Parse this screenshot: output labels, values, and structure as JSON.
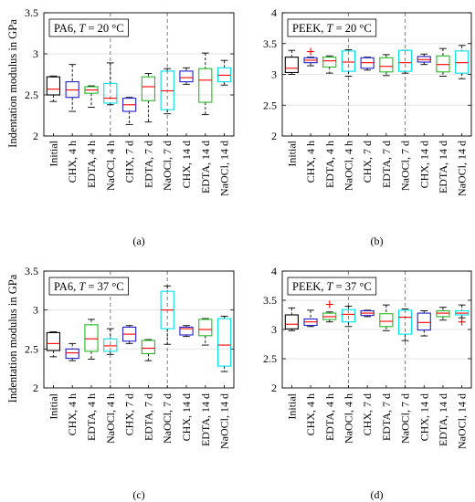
{
  "figure": {
    "ylabel": "Indentation modulus in GPa"
  },
  "colors": {
    "black": "#000000",
    "blue": "#1f1fd0",
    "green": "#22bb22",
    "cyan": "#00e0e8",
    "median": "#ff0000",
    "outlier": "#ff0000",
    "divider": "#808080"
  },
  "chart_data": [
    {
      "type": "box",
      "panel_label": "(a)",
      "material": "PA6",
      "temperature_label": "T",
      "temperature_value": "= 20 °C",
      "ylabel": "Indentation modulus in GPa",
      "ylim": [
        2,
        3.5
      ],
      "yticks": [
        "2",
        "2.5",
        "3",
        "3.5"
      ],
      "categories": [
        "Initial",
        "CHX, 4 h",
        "EDTA, 4 h",
        "NaOCl, 4 h",
        "CHX, 7 d",
        "EDTA, 7 d",
        "NaOCl, 7 d",
        "CHX, 14 d",
        "EDTA, 14 d",
        "NaOCl, 14 d"
      ],
      "colors": [
        "black",
        "blue",
        "green",
        "cyan",
        "blue",
        "green",
        "cyan",
        "blue",
        "green",
        "cyan"
      ],
      "boxes": [
        {
          "whisker_low": 2.42,
          "q1": 2.5,
          "median": 2.57,
          "q3": 2.72,
          "whisker_high": 2.73
        },
        {
          "whisker_low": 2.3,
          "q1": 2.47,
          "median": 2.56,
          "q3": 2.66,
          "whisker_high": 2.87
        },
        {
          "whisker_low": 2.35,
          "q1": 2.52,
          "median": 2.56,
          "q3": 2.6,
          "whisker_high": 2.61
        },
        {
          "whisker_low": 2.38,
          "q1": 2.4,
          "median": 2.46,
          "q3": 2.64,
          "whisker_high": 2.89
        },
        {
          "whisker_low": 2.14,
          "q1": 2.3,
          "median": 2.38,
          "q3": 2.46,
          "whisker_high": 2.47
        },
        {
          "whisker_low": 2.17,
          "q1": 2.43,
          "median": 2.6,
          "q3": 2.72,
          "whisker_high": 2.76
        },
        {
          "whisker_low": 2.27,
          "q1": 2.32,
          "median": 2.55,
          "q3": 2.79,
          "whisker_high": 2.82
        },
        {
          "whisker_low": 2.63,
          "q1": 2.66,
          "median": 2.71,
          "q3": 2.79,
          "whisker_high": 2.83
        },
        {
          "whisker_low": 2.26,
          "q1": 2.41,
          "median": 2.68,
          "q3": 2.82,
          "whisker_high": 3.01
        },
        {
          "whisker_low": 2.62,
          "q1": 2.66,
          "median": 2.74,
          "q3": 2.83,
          "whisker_high": 2.92
        }
      ],
      "outliers": []
    },
    {
      "type": "box",
      "panel_label": "(b)",
      "material": "PEEK",
      "temperature_label": "T",
      "temperature_value": "= 20 °C",
      "ylabel": "",
      "ylim": [
        2,
        4
      ],
      "yticks": [
        "2",
        "2.5",
        "3",
        "3.5",
        "4"
      ],
      "categories": [
        "Initial",
        "CHX, 4 h",
        "EDTA, 4 h",
        "NaOCl, 4 h",
        "CHX, 7 d",
        "EDTA, 7 d",
        "NaOCl, 7 d",
        "CHX, 14 d",
        "EDTA, 14 d",
        "NaOCl, 14 d"
      ],
      "colors": [
        "black",
        "blue",
        "green",
        "cyan",
        "blue",
        "green",
        "cyan",
        "blue",
        "green",
        "cyan"
      ],
      "boxes": [
        {
          "whisker_low": 3.0,
          "q1": 3.03,
          "median": 3.1,
          "q3": 3.28,
          "whisker_high": 3.39
        },
        {
          "whisker_low": 3.14,
          "q1": 3.19,
          "median": 3.23,
          "q3": 3.27,
          "whisker_high": 3.28
        },
        {
          "whisker_low": 3.02,
          "q1": 3.12,
          "median": 3.22,
          "q3": 3.28,
          "whisker_high": 3.3
        },
        {
          "whisker_low": 2.97,
          "q1": 3.05,
          "median": 3.2,
          "q3": 3.38,
          "whisker_high": 3.4
        },
        {
          "whisker_low": 3.07,
          "q1": 3.1,
          "median": 3.19,
          "q3": 3.27,
          "whisker_high": 3.28
        },
        {
          "whisker_low": 2.98,
          "q1": 3.04,
          "median": 3.13,
          "q3": 3.27,
          "whisker_high": 3.32
        },
        {
          "whisker_low": 3.02,
          "q1": 3.05,
          "median": 3.19,
          "q3": 3.39,
          "whisker_high": 3.39
        },
        {
          "whisker_low": 3.16,
          "q1": 3.2,
          "median": 3.24,
          "q3": 3.29,
          "whisker_high": 3.33
        },
        {
          "whisker_low": 2.97,
          "q1": 3.04,
          "median": 3.16,
          "q3": 3.3,
          "whisker_high": 3.42
        },
        {
          "whisker_low": 2.93,
          "q1": 3.02,
          "median": 3.19,
          "q3": 3.38,
          "whisker_high": 3.47
        }
      ],
      "outliers": [
        {
          "category": "CHX, 4 h",
          "value": 3.37
        }
      ]
    },
    {
      "type": "box",
      "panel_label": "(c)",
      "material": "PA6",
      "temperature_label": "T",
      "temperature_value": "= 37 °C",
      "ylabel": "Indentation modulus in GPa",
      "ylim": [
        2,
        3.5
      ],
      "yticks": [
        "2",
        "2.5",
        "3",
        "3.5"
      ],
      "categories": [
        "Initial",
        "CHX, 4 h",
        "EDTA, 4 h",
        "NaOCl, 4 h",
        "CHX, 7 d",
        "EDTA, 7 d",
        "NaOCl, 7 d",
        "CHX, 14 d",
        "EDTA, 14 d",
        "NaOCl, 14 d"
      ],
      "colors": [
        "black",
        "blue",
        "green",
        "cyan",
        "blue",
        "green",
        "cyan",
        "blue",
        "green",
        "cyan"
      ],
      "boxes": [
        {
          "whisker_low": 2.4,
          "q1": 2.48,
          "median": 2.57,
          "q3": 2.71,
          "whisker_high": 2.72
        },
        {
          "whisker_low": 2.35,
          "q1": 2.38,
          "median": 2.45,
          "q3": 2.5,
          "whisker_high": 2.57
        },
        {
          "whisker_low": 2.37,
          "q1": 2.47,
          "median": 2.63,
          "q3": 2.81,
          "whisker_high": 2.88
        },
        {
          "whisker_low": 2.43,
          "q1": 2.47,
          "median": 2.54,
          "q3": 2.63,
          "whisker_high": 2.76
        },
        {
          "whisker_low": 2.57,
          "q1": 2.6,
          "median": 2.69,
          "q3": 2.78,
          "whisker_high": 2.8
        },
        {
          "whisker_low": 2.35,
          "q1": 2.44,
          "median": 2.51,
          "q3": 2.61,
          "whisker_high": 2.62
        },
        {
          "whisker_low": 2.56,
          "q1": 2.76,
          "median": 3.0,
          "q3": 3.24,
          "whisker_high": 3.31
        },
        {
          "whisker_low": 2.66,
          "q1": 2.68,
          "median": 2.76,
          "q3": 2.78,
          "whisker_high": 2.8
        },
        {
          "whisker_low": 2.55,
          "q1": 2.67,
          "median": 2.75,
          "q3": 2.88,
          "whisker_high": 2.89
        },
        {
          "whisker_low": 2.21,
          "q1": 2.28,
          "median": 2.55,
          "q3": 2.89,
          "whisker_high": 2.92
        }
      ],
      "outliers": []
    },
    {
      "type": "box",
      "panel_label": "(d)",
      "material": "PEEK",
      "temperature_label": "T",
      "temperature_value": "= 37 °C",
      "ylabel": "",
      "ylim": [
        2,
        4
      ],
      "yticks": [
        "2",
        "2.5",
        "3",
        "3.5",
        "4"
      ],
      "categories": [
        "Initial",
        "CHX, 4 h",
        "EDTA, 4 h",
        "NaOCl, 4 h",
        "CHX, 7 d",
        "EDTA, 7 d",
        "NaOCl, 7 d",
        "CHX, 14 d",
        "EDTA, 14 d",
        "NaOCl, 14 d"
      ],
      "colors": [
        "black",
        "blue",
        "green",
        "cyan",
        "blue",
        "green",
        "cyan",
        "blue",
        "green",
        "cyan"
      ],
      "boxes": [
        {
          "whisker_low": 2.98,
          "q1": 3.01,
          "median": 3.09,
          "q3": 3.25,
          "whisker_high": 3.37
        },
        {
          "whisker_low": 3.05,
          "q1": 3.07,
          "median": 3.13,
          "q3": 3.18,
          "whisker_high": 3.33
        },
        {
          "whisker_low": 3.13,
          "q1": 3.17,
          "median": 3.22,
          "q3": 3.28,
          "whisker_high": 3.3
        },
        {
          "whisker_low": 3.05,
          "q1": 3.13,
          "median": 3.26,
          "q3": 3.34,
          "whisker_high": 3.4
        },
        {
          "whisker_low": 3.22,
          "q1": 3.24,
          "median": 3.28,
          "q3": 3.32,
          "whisker_high": 3.33
        },
        {
          "whisker_low": 2.98,
          "q1": 3.05,
          "median": 3.14,
          "q3": 3.27,
          "whisker_high": 3.42
        },
        {
          "whisker_low": 2.81,
          "q1": 2.92,
          "median": 3.21,
          "q3": 3.33,
          "whisker_high": 3.35
        },
        {
          "whisker_low": 2.89,
          "q1": 2.99,
          "median": 3.12,
          "q3": 3.28,
          "whisker_high": 3.32
        },
        {
          "whisker_low": 3.16,
          "q1": 3.22,
          "median": 3.28,
          "q3": 3.32,
          "whisker_high": 3.38
        },
        {
          "whisker_low": 3.2,
          "q1": 3.25,
          "median": 3.28,
          "q3": 3.32,
          "whisker_high": 3.42
        }
      ],
      "outliers": [
        {
          "category": "EDTA, 4 h",
          "value": 3.43
        },
        {
          "category": "NaOCl, 14 d",
          "value": 3.13
        }
      ]
    }
  ]
}
